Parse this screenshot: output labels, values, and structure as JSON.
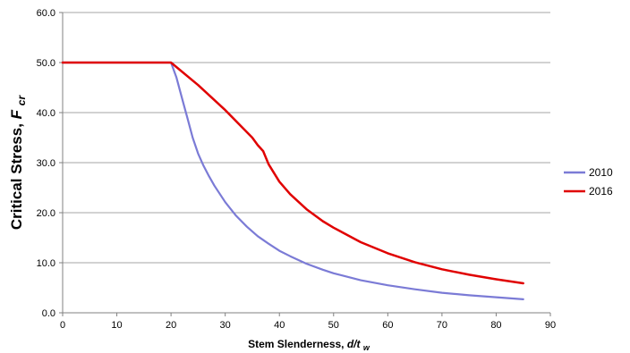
{
  "chart_data": {
    "type": "line",
    "title": "",
    "xlabel": {
      "main": "Stem Slenderness, ",
      "var": "d/t",
      "sub": "w"
    },
    "ylabel": {
      "main": "Critical Stress, ",
      "var": "F",
      "sub": "cr"
    },
    "xlim": [
      0,
      90
    ],
    "ylim": [
      0,
      60
    ],
    "xticks": [
      0,
      10,
      20,
      30,
      40,
      50,
      60,
      70,
      80,
      90
    ],
    "yticks": [
      0,
      10,
      20,
      30,
      40,
      50,
      60
    ],
    "xtick_labels": [
      "0",
      "10",
      "20",
      "30",
      "40",
      "50",
      "60",
      "70",
      "80",
      "90"
    ],
    "ytick_labels": [
      "0.0",
      "10.0",
      "20.0",
      "30.0",
      "40.0",
      "50.0",
      "60.0"
    ],
    "grid": true,
    "legend_position": "right",
    "series": [
      {
        "name": "2010",
        "color": "#7b7bd6",
        "x": [
          0,
          20,
          21,
          22,
          23,
          24,
          25,
          26,
          27,
          28,
          30,
          32,
          34,
          36,
          38,
          40,
          42,
          45,
          48,
          50,
          55,
          60,
          65,
          70,
          75,
          80,
          85
        ],
        "y": [
          50,
          50,
          47.0,
          43.0,
          39.0,
          35.0,
          31.8,
          29.4,
          27.3,
          25.4,
          22.1,
          19.4,
          17.2,
          15.3,
          13.8,
          12.4,
          11.3,
          9.8,
          8.6,
          7.9,
          6.5,
          5.5,
          4.7,
          4.0,
          3.5,
          3.1,
          2.7
        ]
      },
      {
        "name": "2016",
        "color": "#e00000",
        "x": [
          0,
          20,
          25,
          30,
          35,
          36,
          37,
          38,
          40,
          42,
          45,
          48,
          50,
          55,
          60,
          65,
          70,
          75,
          80,
          85
        ],
        "y": [
          50,
          50,
          45.5,
          40.5,
          35.0,
          33.5,
          32.3,
          29.7,
          26.2,
          23.7,
          20.7,
          18.3,
          17.0,
          14.1,
          11.9,
          10.1,
          8.7,
          7.6,
          6.7,
          5.9
        ]
      }
    ]
  }
}
